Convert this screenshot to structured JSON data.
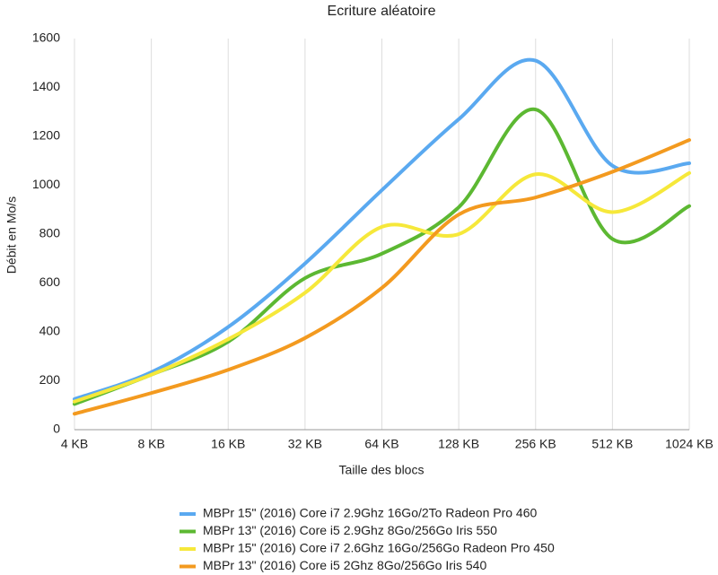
{
  "chart_data": {
    "type": "line",
    "title": "Ecriture aléatoire",
    "x_label": "Taille des blocs",
    "y_label": "Débit en Mo/s",
    "categories": [
      "4 KB",
      "8 KB",
      "16 KB",
      "32 KB",
      "64 KB",
      "128 KB",
      "256 KB",
      "512 KB",
      "1024 KB"
    ],
    "series": [
      {
        "name": "MBPr 15\" (2016) Core i7 2.9Ghz 16Go/2To Radeon Pro 460",
        "color": "#5aa9f0",
        "values": [
          125,
          235,
          420,
          680,
          980,
          1270,
          1510,
          1080,
          1090
        ]
      },
      {
        "name": "MBPr 13\" (2016) Core i5 2.9Ghz 8Go/256Go Iris 550",
        "color": "#5cb832",
        "values": [
          105,
          225,
          360,
          620,
          720,
          910,
          1310,
          780,
          915
        ]
      },
      {
        "name": "MBPr 15\" (2016) Core i7 2.6Ghz 16Go/256Go Radeon Pro 450",
        "color": "#f6e83a",
        "values": [
          115,
          225,
          370,
          560,
          830,
          800,
          1045,
          890,
          1050
        ]
      },
      {
        "name": "MBPr 13\" (2016) Core i5 2Ghz 8Go/256Go Iris 540",
        "color": "#f39a1f",
        "values": [
          65,
          150,
          245,
          375,
          580,
          880,
          950,
          1055,
          1185
        ]
      }
    ],
    "ylim": [
      0,
      1600
    ],
    "yticks": [
      0,
      200,
      400,
      600,
      800,
      1000,
      1200,
      1400,
      1600
    ],
    "grid": "x",
    "legend": "bottom"
  }
}
